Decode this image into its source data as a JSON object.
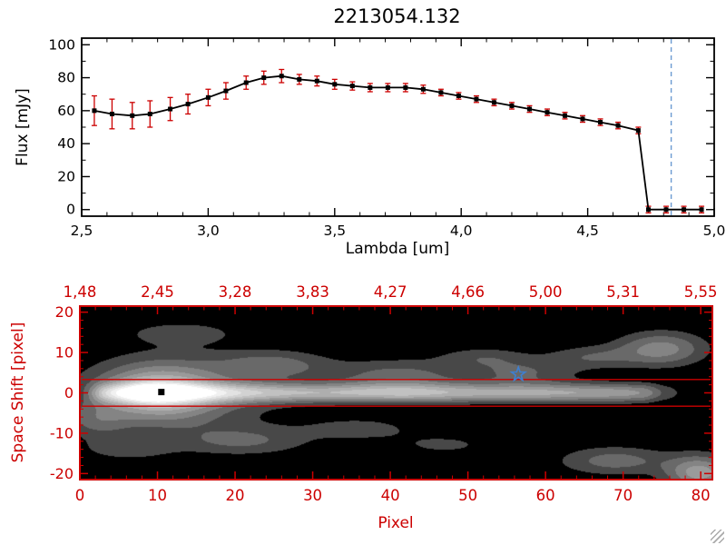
{
  "title": "2213054.132",
  "colors": {
    "axis_red": "#cc0000",
    "dashed_blue": "#6b9bd2",
    "marker_blue": "#3e7fd0",
    "data_black": "#000000",
    "error_red": "#cc0000"
  },
  "chart_data": [
    {
      "type": "line",
      "name": "spectrum-plot",
      "title": "2213054.132",
      "xlabel": "Lambda [um]",
      "ylabel": "Flux [mJy]",
      "xlim": [
        2.5,
        5.0
      ],
      "ylim": [
        -4,
        104
      ],
      "x_ticks": [
        {
          "v": 2.5,
          "label": "2,5"
        },
        {
          "v": 3.0,
          "label": "3,0"
        },
        {
          "v": 3.5,
          "label": "3,5"
        },
        {
          "v": 4.0,
          "label": "4,0"
        },
        {
          "v": 4.5,
          "label": "4,5"
        },
        {
          "v": 5.0,
          "label": "5,0"
        }
      ],
      "x_minor_step": 0.1,
      "y_ticks": [
        {
          "v": 0,
          "label": "0"
        },
        {
          "v": 20,
          "label": "20"
        },
        {
          "v": 40,
          "label": "40"
        },
        {
          "v": 60,
          "label": "60"
        },
        {
          "v": 80,
          "label": "80"
        },
        {
          "v": 100,
          "label": "100"
        }
      ],
      "y_minor_step": 10,
      "x": [
        2.55,
        2.62,
        2.7,
        2.77,
        2.85,
        2.92,
        3.0,
        3.07,
        3.15,
        3.22,
        3.29,
        3.36,
        3.43,
        3.5,
        3.57,
        3.64,
        3.71,
        3.78,
        3.85,
        3.92,
        3.99,
        4.06,
        4.13,
        4.2,
        4.27,
        4.34,
        4.41,
        4.48,
        4.55,
        4.62,
        4.7,
        4.74,
        4.81,
        4.88,
        4.95
      ],
      "flux": [
        60,
        58,
        57,
        58,
        61,
        64,
        68,
        72,
        77,
        80,
        81,
        79,
        78,
        76,
        75,
        74,
        74,
        74,
        73,
        71,
        69,
        67,
        65,
        63,
        61,
        59,
        57,
        55,
        53,
        51,
        48,
        0,
        0,
        0,
        0
      ],
      "err": [
        9,
        9,
        8,
        8,
        7,
        6,
        5,
        5,
        4,
        4,
        4,
        3,
        3,
        3,
        2.5,
        2.5,
        2.5,
        2.5,
        2.5,
        2,
        2,
        2,
        2,
        2,
        2,
        2,
        2,
        2,
        2,
        2,
        2,
        2,
        2,
        2,
        2
      ],
      "dashed_line_x": 4.83,
      "marker": "filled-square"
    },
    {
      "type": "heatmap",
      "name": "spatial-spectral-image",
      "xlabel": "Pixel",
      "ylabel": "Space Shift [pixel]",
      "xlim": [
        0,
        81.5
      ],
      "ylim": [
        -21.5,
        21.5
      ],
      "x_ticks": [
        {
          "v": 0,
          "label": "0"
        },
        {
          "v": 10,
          "label": "10"
        },
        {
          "v": 20,
          "label": "20"
        },
        {
          "v": 30,
          "label": "30"
        },
        {
          "v": 40,
          "label": "40"
        },
        {
          "v": 50,
          "label": "50"
        },
        {
          "v": 60,
          "label": "60"
        },
        {
          "v": 70,
          "label": "70"
        },
        {
          "v": 80,
          "label": "80"
        }
      ],
      "top_axis": [
        {
          "v": 0,
          "label": "1,48"
        },
        {
          "v": 10,
          "label": "2,45"
        },
        {
          "v": 20,
          "label": "3,28"
        },
        {
          "v": 30,
          "label": "3,83"
        },
        {
          "v": 40,
          "label": "4,27"
        },
        {
          "v": 50,
          "label": "4,66"
        },
        {
          "v": 60,
          "label": "5,00"
        },
        {
          "v": 70,
          "label": "5,31"
        },
        {
          "v": 80,
          "label": "5,55"
        }
      ],
      "y_ticks": [
        {
          "v": -20,
          "label": "-20"
        },
        {
          "v": -10,
          "label": "-10"
        },
        {
          "v": 0,
          "label": "0"
        },
        {
          "v": 10,
          "label": "10"
        },
        {
          "v": 20,
          "label": "20"
        }
      ],
      "minor_step": 2,
      "aperture_lines_y": [
        3.3,
        -3.3
      ],
      "square_marker": {
        "x": 10.5,
        "y": 0.2
      },
      "star_marker": {
        "x": 56.5,
        "y": 4.6
      },
      "image_model": {
        "core_sigma": 1.6,
        "amplitude_points": [
          [
            0,
            0
          ],
          [
            1,
            0.1
          ],
          [
            3,
            0.45
          ],
          [
            6,
            0.7
          ],
          [
            8,
            0.92
          ],
          [
            10,
            1.0
          ],
          [
            12,
            0.9
          ],
          [
            15,
            0.72
          ],
          [
            18,
            0.63
          ],
          [
            22,
            0.58
          ],
          [
            27,
            0.55
          ],
          [
            32,
            0.54
          ],
          [
            37,
            0.56
          ],
          [
            42,
            0.58
          ],
          [
            47,
            0.54
          ],
          [
            52,
            0.51
          ],
          [
            57,
            0.52
          ],
          [
            62,
            0.5
          ],
          [
            66,
            0.48
          ],
          [
            70,
            0.46
          ],
          [
            73,
            0.38
          ],
          [
            75,
            0.2
          ],
          [
            77,
            0.1
          ],
          [
            79,
            0.06
          ],
          [
            81.5,
            0.04
          ]
        ],
        "halos": [
          [
            0.5,
            10,
            0,
            5,
            4.5
          ],
          [
            0.22,
            13,
            0,
            9,
            7
          ]
        ],
        "blobs": [
          [
            0.22,
            25,
            7,
            5,
            2.5
          ],
          [
            0.25,
            41,
            4,
            6,
            3
          ],
          [
            0.2,
            57,
            5,
            5,
            2.5
          ],
          [
            0.35,
            75,
            11,
            4,
            3
          ],
          [
            0.18,
            66,
            9,
            4,
            2
          ],
          [
            0.25,
            69,
            -17,
            5,
            2.5
          ],
          [
            0.45,
            80,
            -20,
            3,
            3
          ],
          [
            0.2,
            21,
            -12,
            6,
            2.5
          ],
          [
            0.15,
            6,
            -14,
            4,
            2
          ],
          [
            0.15,
            36,
            -9,
            5,
            2
          ],
          [
            0.15,
            13,
            15,
            5,
            2
          ],
          [
            0.12,
            47,
            -13,
            5,
            2
          ],
          [
            0.18,
            2,
            -7,
            3,
            3
          ],
          [
            0.15,
            52,
            9,
            4,
            1.8
          ]
        ],
        "levels": 10,
        "gamma": 0.55
      }
    }
  ]
}
